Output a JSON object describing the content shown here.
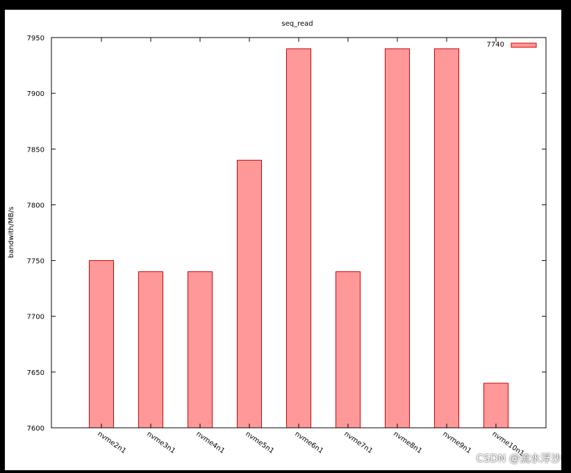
{
  "chart_data": {
    "type": "bar",
    "title": "seq_read",
    "xlabel": "",
    "ylabel": "bandwith/MB/s",
    "categories": [
      "nvme2n1",
      "nvme3n1",
      "nvme4n1",
      "nvme5n1",
      "nvme6n1",
      "nvme7n1",
      "nvme8n1",
      "nvme9n1",
      "nvme10n1"
    ],
    "series": [
      {
        "name": "7740",
        "values": [
          7750,
          7740,
          7740,
          7840,
          7940,
          7740,
          7940,
          7940,
          7640
        ]
      }
    ],
    "ylim": [
      7600,
      7950
    ],
    "yticks": [
      7600,
      7650,
      7700,
      7750,
      7800,
      7850,
      7900,
      7950
    ],
    "legend_position": "top-right",
    "grid": false,
    "colors": {
      "bar_fill": "#ff9999",
      "bar_stroke": "#cc0000"
    }
  },
  "watermark": "CSDN @流水浮沙"
}
